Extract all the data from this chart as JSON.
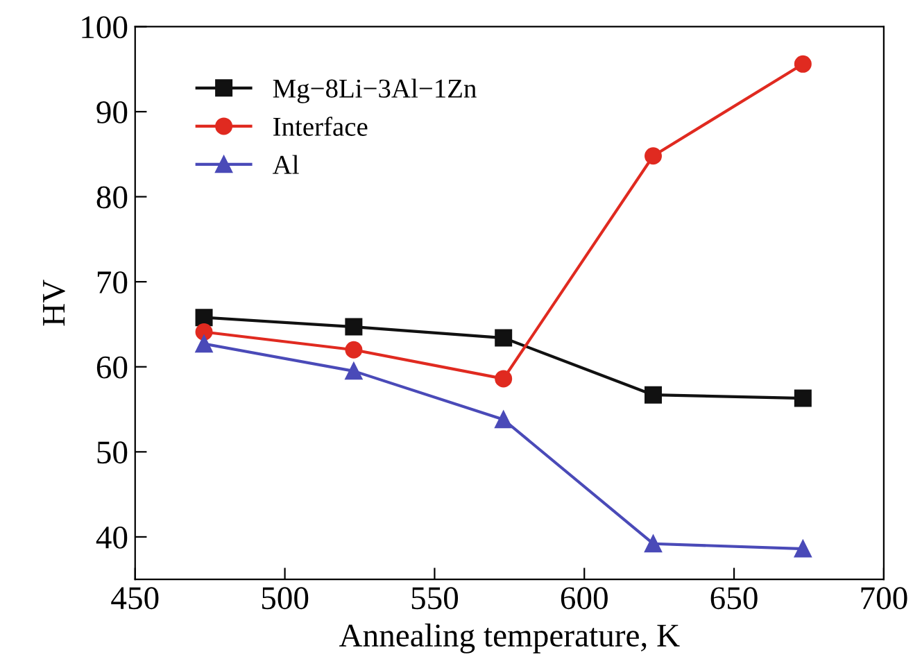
{
  "chart_data": {
    "type": "line",
    "xlabel": "Annealing temperature, K",
    "ylabel": "HV",
    "x": [
      473,
      523,
      573,
      623,
      673
    ],
    "series": [
      {
        "name": "Mg−8Li−3Al−1Zn",
        "color": "#111111",
        "marker": "square",
        "values": [
          65.8,
          64.7,
          63.4,
          56.7,
          56.3
        ]
      },
      {
        "name": "Interface",
        "color": "#e02a20",
        "marker": "circle",
        "values": [
          64.1,
          62.0,
          58.6,
          84.8,
          95.6
        ]
      },
      {
        "name": "Al",
        "color": "#4a4ab8",
        "marker": "triangle",
        "values": [
          62.7,
          59.5,
          53.8,
          39.2,
          38.6
        ]
      }
    ],
    "xlim": [
      450,
      700
    ],
    "xticks": [
      450,
      500,
      550,
      600,
      650,
      700
    ],
    "ylim": [
      35,
      100
    ],
    "yticks": [
      40,
      50,
      60,
      70,
      80,
      90,
      100
    ],
    "grid": false,
    "legend": "top left",
    "line_style": "solid"
  }
}
